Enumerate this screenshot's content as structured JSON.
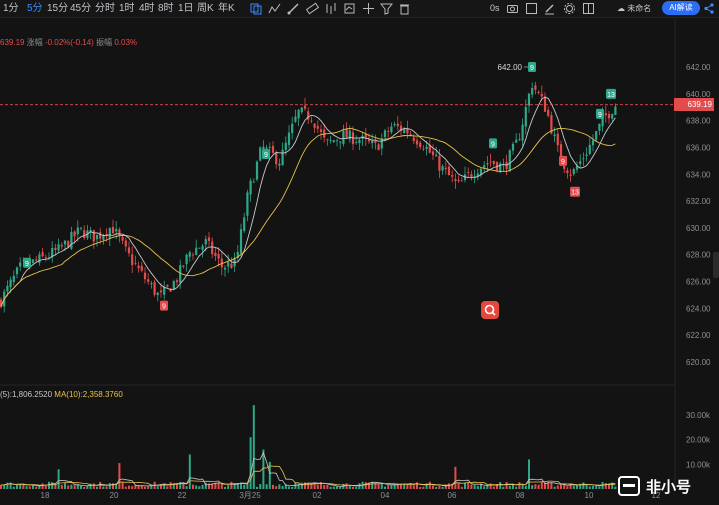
{
  "toolbar": {
    "timeframes": [
      "1分",
      "5分",
      "15分",
      "45分",
      "分时",
      "1时",
      "4时",
      "8时",
      "1日",
      "周K",
      "年K"
    ],
    "active_timeframe": "5分",
    "countdown": "0s",
    "layout_name": "未命名",
    "ai_label": "AI解读",
    "icons": [
      "compare-icon",
      "indicator-icon",
      "drawing-icon",
      "ruler-icon",
      "bar-style-icon",
      "template-icon",
      "crosshair-icon",
      "filter-icon",
      "trash-icon",
      "camera-icon",
      "fullscreen-icon",
      "edit-icon",
      "settings-icon",
      "layout-icon",
      "cloud-icon",
      "share-icon"
    ]
  },
  "info_line": {
    "price": "639.19",
    "change_label": "涨幅",
    "change": "-0.02%(-0.14)",
    "amplitude_label": "振幅",
    "amplitude": "0.03%"
  },
  "volume_line": {
    "ma5": "(5):1,806.2520",
    "ma10": "MA(10):2,358.3760"
  },
  "price_axis": [
    "642.00",
    "640.00",
    "638.00",
    "636.00",
    "634.00",
    "632.00",
    "630.00",
    "628.00",
    "626.00",
    "624.00",
    "622.00",
    "620.00"
  ],
  "volume_axis": [
    "30.00k",
    "20.00k",
    "10.00k"
  ],
  "time_axis": [
    "18",
    "20",
    "22",
    "3月25",
    "02",
    "04",
    "06",
    "08",
    "10",
    "12"
  ],
  "current_price_tag": "639.19",
  "high_marker": "642.00",
  "watermark": "非小号",
  "colors": {
    "up": "#2fa88a",
    "down": "#e34c4c",
    "ma_fast": "#c9c9c9",
    "ma_slow": "#e8c24a",
    "accent": "#2a6ef5"
  },
  "chart_data": {
    "type": "candlestick",
    "ylim": [
      619,
      643
    ],
    "volume_ylim": [
      0,
      36000
    ],
    "x_ticks": [
      "18",
      "20",
      "22",
      "3月25",
      "02",
      "04",
      "06",
      "08",
      "10",
      "12"
    ],
    "close_anchors": [
      [
        0,
        624.5
      ],
      [
        20,
        627.0
      ],
      [
        42,
        627.7
      ],
      [
        60,
        628.4
      ],
      [
        80,
        629.8
      ],
      [
        96,
        629.3
      ],
      [
        112,
        630.1
      ],
      [
        126,
        628.2
      ],
      [
        140,
        626.7
      ],
      [
        160,
        624.8
      ],
      [
        176,
        626.1
      ],
      [
        190,
        628.2
      ],
      [
        206,
        628.9
      ],
      [
        222,
        627.1
      ],
      [
        236,
        627.4
      ],
      [
        248,
        632.5
      ],
      [
        262,
        636.0
      ],
      [
        280,
        635.0
      ],
      [
        298,
        638.6
      ],
      [
        312,
        638.3
      ],
      [
        326,
        636.2
      ],
      [
        342,
        636.9
      ],
      [
        360,
        636.6
      ],
      [
        376,
        636.0
      ],
      [
        392,
        637.6
      ],
      [
        406,
        637.3
      ],
      [
        424,
        636.2
      ],
      [
        440,
        634.6
      ],
      [
        458,
        633.1
      ],
      [
        474,
        634.3
      ],
      [
        490,
        635.0
      ],
      [
        504,
        634.5
      ],
      [
        518,
        636.5
      ],
      [
        532,
        640.8
      ],
      [
        546,
        638.9
      ],
      [
        560,
        635.2
      ],
      [
        572,
        634.0
      ],
      [
        580,
        634.9
      ],
      [
        592,
        636.4
      ],
      [
        604,
        638.2
      ],
      [
        618,
        639.4
      ]
    ],
    "markers": [
      {
        "x": 27,
        "price": 627.4,
        "label": "9",
        "kind": "up"
      },
      {
        "x": 164,
        "price": 624.2,
        "label": "9",
        "kind": "down"
      },
      {
        "x": 266,
        "price": 635.5,
        "label": "9",
        "kind": "up"
      },
      {
        "x": 493,
        "price": 636.3,
        "label": "9",
        "kind": "up"
      },
      {
        "x": 532,
        "price": 642.0,
        "label": "9",
        "kind": "up"
      },
      {
        "x": 563,
        "price": 635.0,
        "label": "9",
        "kind": "down"
      },
      {
        "x": 575,
        "price": 632.7,
        "label": "13",
        "kind": "down"
      },
      {
        "x": 600,
        "price": 638.5,
        "label": "9",
        "kind": "up"
      },
      {
        "x": 611,
        "price": 640.0,
        "label": "13",
        "kind": "up"
      }
    ],
    "volume_spikes": [
      {
        "x": 255,
        "value": 34000
      },
      {
        "x": 250,
        "value": 21000
      },
      {
        "x": 262,
        "value": 16000
      },
      {
        "x": 190,
        "value": 14000
      },
      {
        "x": 528,
        "value": 12000
      },
      {
        "x": 269,
        "value": 11000
      },
      {
        "x": 120,
        "value": 10500
      },
      {
        "x": 456,
        "value": 9000
      },
      {
        "x": 60,
        "value": 8000
      }
    ],
    "last_price": 639.19,
    "high": 642.0
  }
}
